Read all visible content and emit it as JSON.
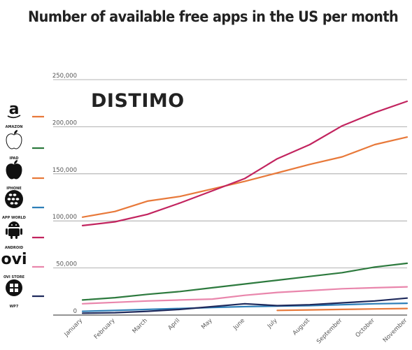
{
  "title": "Number of available free apps in the US per month",
  "chart_data": {
    "type": "line",
    "title": "Number of available free apps in the US per month",
    "watermark": "DISTIMO",
    "categories": [
      "January",
      "February",
      "March",
      "April",
      "May",
      "June",
      "July",
      "August",
      "September",
      "October",
      "November"
    ],
    "y_ticks": [
      "0",
      "50,000",
      "100,000",
      "150,000",
      "200,000",
      "250,000"
    ],
    "ylim": [
      0,
      250000
    ],
    "grid": true,
    "legend_position": "left",
    "series": [
      {
        "name": "AMAZON",
        "icon": "amazon-icon",
        "color": "#e8793a",
        "values": [
          null,
          null,
          null,
          null,
          null,
          null,
          5000,
          5500,
          6000,
          6500,
          7000
        ]
      },
      {
        "name": "IPAD",
        "icon": "apple-outline-icon",
        "color": "#2d7a3e",
        "values": [
          16000,
          18500,
          22000,
          25000,
          29000,
          33000,
          37000,
          41000,
          45000,
          51000,
          55000
        ]
      },
      {
        "name": "IPHONE",
        "icon": "apple-icon",
        "color": "#e8793a",
        "values": [
          104000,
          110000,
          121000,
          126000,
          134000,
          142000,
          151000,
          160000,
          168000,
          181000,
          189000
        ]
      },
      {
        "name": "APP WORLD",
        "icon": "blackberry-icon",
        "color": "#2e7fb8",
        "values": [
          4000,
          5000,
          6000,
          7000,
          8000,
          9000,
          9500,
          10000,
          11000,
          12000,
          12500
        ]
      },
      {
        "name": "ANDROID",
        "icon": "android-icon",
        "color": "#c2245f",
        "values": [
          95000,
          99000,
          107000,
          119000,
          132000,
          145000,
          166000,
          181000,
          201000,
          215000,
          227000
        ]
      },
      {
        "name": "OVI STORE",
        "icon": "ovi-icon",
        "color": "#e986ac",
        "values": [
          12000,
          13500,
          15000,
          16000,
          17000,
          21000,
          24000,
          26000,
          28000,
          29000,
          30000
        ]
      },
      {
        "name": "WP7",
        "icon": "windows-phone-icon",
        "color": "#1f2a5c",
        "values": [
          2000,
          2500,
          4000,
          6000,
          9000,
          12000,
          10000,
          11000,
          13000,
          15000,
          18000
        ]
      }
    ]
  }
}
